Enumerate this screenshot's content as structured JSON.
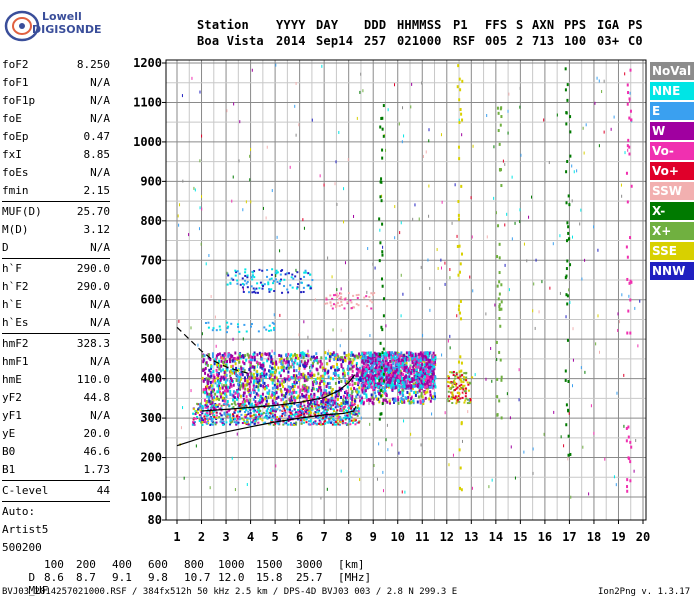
{
  "logo": {
    "line1": "Lowell",
    "line2": "DIGISONDE"
  },
  "header": {
    "labels": [
      "Station",
      "YYYY",
      "DAY",
      "DDD",
      "HHMMSS",
      "P1",
      "FFS",
      "S",
      "AXN",
      "PPS",
      "IGA",
      "PS"
    ],
    "values": [
      "Boa Vista",
      "2014",
      "Sep14",
      "257",
      "021000",
      "RSF",
      "005",
      "2",
      "713",
      "100",
      "03+",
      "C0"
    ]
  },
  "params": {
    "group1": [
      {
        "label": "foF2",
        "value": "8.250"
      },
      {
        "label": "foF1",
        "value": "N/A"
      },
      {
        "label": "foF1p",
        "value": "N/A"
      },
      {
        "label": "foE",
        "value": "N/A"
      },
      {
        "label": "foEp",
        "value": "0.47"
      },
      {
        "label": "fxI",
        "value": "8.85"
      },
      {
        "label": "foEs",
        "value": "N/A"
      },
      {
        "label": "fmin",
        "value": "2.15"
      }
    ],
    "group2": [
      {
        "label": "MUF(D)",
        "value": "25.70"
      },
      {
        "label": "M(D)",
        "value": "3.12"
      },
      {
        "label": "D",
        "value": "N/A"
      }
    ],
    "group3": [
      {
        "label": "h`F",
        "value": "290.0"
      },
      {
        "label": "h`F2",
        "value": "290.0"
      },
      {
        "label": "h`E",
        "value": "N/A"
      },
      {
        "label": "h`Es",
        "value": "N/A"
      }
    ],
    "group4": [
      {
        "label": "hmF2",
        "value": "328.3"
      },
      {
        "label": "hmF1",
        "value": "N/A"
      },
      {
        "label": "hmE",
        "value": "110.0"
      },
      {
        "label": "yF2",
        "value": "44.8"
      },
      {
        "label": "yF1",
        "value": "N/A"
      },
      {
        "label": "yE",
        "value": "20.0"
      },
      {
        "label": "B0",
        "value": "46.6"
      },
      {
        "label": "B1",
        "value": "1.73"
      }
    ],
    "group5": [
      {
        "label": "C-level",
        "value": "44"
      }
    ],
    "auto_lines": [
      "Auto:",
      "Artist5",
      "500200"
    ]
  },
  "legend": [
    {
      "label": "NoVal",
      "color": "#8c8c8c"
    },
    {
      "label": "NNE",
      "color": "#00e5e5"
    },
    {
      "label": "E",
      "color": "#3aa0f0"
    },
    {
      "label": "W",
      "color": "#a000a0"
    },
    {
      "label": "Vo-",
      "color": "#f030b0"
    },
    {
      "label": "Vo+",
      "color": "#e0002a"
    },
    {
      "label": "SSW",
      "color": "#f2b0b0"
    },
    {
      "label": "X-",
      "color": "#007a00"
    },
    {
      "label": "X+",
      "color": "#70b040"
    },
    {
      "label": "SSE",
      "color": "#d8d000"
    },
    {
      "label": "NNW",
      "color": "#2020c0"
    }
  ],
  "muf_table": {
    "d_label": "D",
    "d_values": [
      "100",
      "200",
      "400",
      "600",
      "800",
      "1000",
      "1500",
      "3000"
    ],
    "d_unit": "[km]",
    "muf_label": "MUF",
    "muf_values": [
      "8.6",
      "8.7",
      "9.1",
      "9.8",
      "10.7",
      "12.0",
      "15.8",
      "25.7"
    ],
    "muf_unit": "[MHz]"
  },
  "footer": {
    "left": "BVJ03_2014257021000.RSF / 384fx512h 50 kHz 2.5 km / DPS-4D BVJ03 003 / 2.8 N 299.3 E",
    "right": "Ion2Png v. 1.3.17"
  },
  "chart_data": {
    "type": "scatter",
    "title": "",
    "xlabel": "",
    "ylabel": "",
    "xlim": [
      1,
      20
    ],
    "ylim": [
      80,
      1200
    ],
    "x_ticks": [
      1,
      2,
      3,
      4,
      5,
      6,
      7,
      8,
      9,
      10,
      11,
      12,
      13,
      14,
      15,
      16,
      17,
      18,
      19,
      20
    ],
    "y_ticks": [
      80,
      100,
      200,
      300,
      400,
      500,
      600,
      700,
      800,
      900,
      1000,
      1100,
      1200
    ],
    "grid": true,
    "legend_placement": "right",
    "echo_clusters": [
      {
        "name": "F-trace main",
        "x_range": [
          1.6,
          8.4
        ],
        "y_range": [
          285,
          340
        ]
      },
      {
        "name": "F-trace spread",
        "x_range": [
          2.0,
          11.5
        ],
        "y_range": [
          340,
          470
        ]
      },
      {
        "name": "Es-like patch",
        "x_range": [
          12.0,
          13.0
        ],
        "y_range": [
          340,
          420
        ]
      },
      {
        "name": "Second hop",
        "x_range": [
          3.0,
          6.5
        ],
        "y_range": [
          620,
          680
        ]
      }
    ],
    "model_curves": [
      {
        "name": "profile (solid)",
        "points": [
          [
            1.0,
            230
          ],
          [
            2,
            250
          ],
          [
            3,
            265
          ],
          [
            4,
            278
          ],
          [
            5,
            290
          ],
          [
            6,
            300
          ],
          [
            7,
            308
          ],
          [
            7.8,
            312
          ],
          [
            8.2,
            318
          ],
          [
            8.3,
            330
          ]
        ]
      },
      {
        "name": "profile (solid upper)",
        "points": [
          [
            2.0,
            318
          ],
          [
            3,
            322
          ],
          [
            4,
            327
          ],
          [
            5,
            332
          ],
          [
            6,
            340
          ],
          [
            7,
            352
          ],
          [
            7.6,
            370
          ],
          [
            8.0,
            390
          ],
          [
            8.25,
            410
          ]
        ]
      },
      {
        "name": "virtual height (dashed)",
        "points": [
          [
            1.0,
            530
          ],
          [
            1.5,
            500
          ],
          [
            2.0,
            470
          ],
          [
            2.5,
            445
          ],
          [
            3.0,
            430
          ],
          [
            3.5,
            420
          ],
          [
            4,
            412
          ]
        ]
      }
    ]
  }
}
